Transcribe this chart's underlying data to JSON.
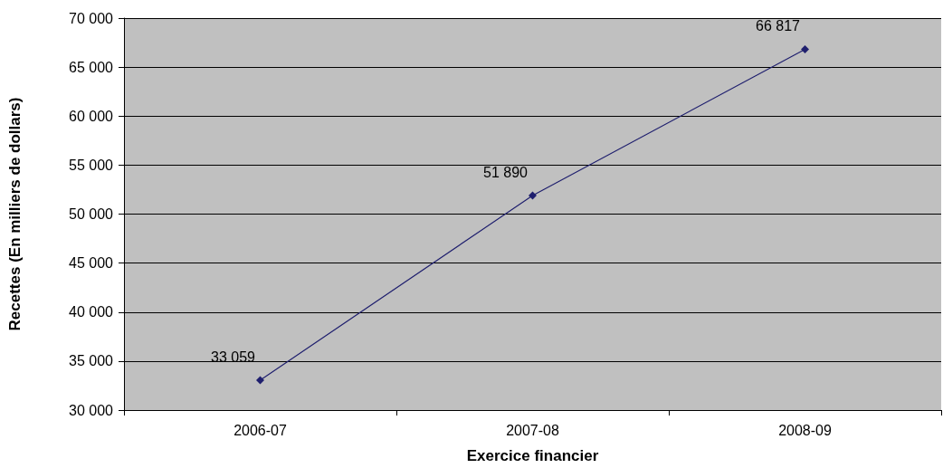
{
  "chart_data": {
    "type": "line",
    "xlabel": "Exercice financier",
    "ylabel": "Recettes (En milliers de dollars)",
    "categories": [
      "2006-07",
      "2007-08",
      "2008-09"
    ],
    "series": [
      {
        "color": "#1f1f6e",
        "values": [
          33059,
          51890,
          66817
        ],
        "value_labels": [
          "33 059",
          "51 890",
          "66 817"
        ]
      }
    ],
    "ylim": [
      30000,
      70000
    ],
    "yticks": [
      {
        "value": 30000,
        "label": "30 000"
      },
      {
        "value": 35000,
        "label": "35 000"
      },
      {
        "value": 40000,
        "label": "40 000"
      },
      {
        "value": 45000,
        "label": "45 000"
      },
      {
        "value": 50000,
        "label": "50 000"
      },
      {
        "value": 55000,
        "label": "55 000"
      },
      {
        "value": 60000,
        "label": "60 000"
      },
      {
        "value": 65000,
        "label": "65 000"
      },
      {
        "value": 70000,
        "label": "70 000"
      }
    ],
    "grid": "y",
    "marker": "diamond",
    "line_style": "solid"
  }
}
